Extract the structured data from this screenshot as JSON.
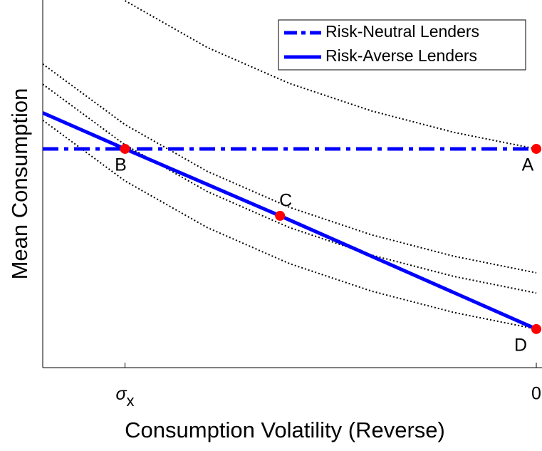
{
  "chart_data": {
    "type": "line",
    "xlabel": "Consumption Volatility (Reverse)",
    "ylabel": "Mean Consumption",
    "x_reversed": true,
    "xlim": [
      1.2,
      0
    ],
    "ylim": [
      0,
      10
    ],
    "xticks": [
      {
        "value": 1,
        "label": "σx"
      },
      0
    ],
    "legend": "upper right",
    "series": [
      {
        "name": "Risk-Neutral Lenders",
        "color": "#0000ff",
        "style": "dashdot",
        "x": [
          1.2,
          0
        ],
        "values": [
          5.95,
          5.95
        ]
      },
      {
        "name": "Risk-Averse Lenders",
        "color": "#0000ff",
        "style": "solid",
        "x": [
          1.2,
          1,
          0.623,
          0
        ],
        "values": [
          6.93,
          5.95,
          4.13,
          1.05
        ]
      }
    ],
    "curves": [
      {
        "color": "#000000",
        "style": "dotted",
        "x": [
          1,
          0.8,
          0.6,
          0.4,
          0.2,
          0
        ],
        "values": [
          9.98,
          8.71,
          7.73,
          6.98,
          6.4,
          5.95
        ]
      },
      {
        "color": "#000000",
        "style": "dotted",
        "x": [
          1.2,
          1,
          0.8,
          0.6,
          0.4,
          0.2,
          0
        ],
        "values": [
          8.26,
          6.61,
          5.34,
          4.36,
          3.61,
          3.03,
          2.58
        ]
      },
      {
        "color": "#000000",
        "style": "dotted",
        "x": [
          1.2,
          1,
          0.8,
          0.6,
          0.4,
          0.2,
          0
        ],
        "values": [
          7.71,
          6.06,
          4.79,
          3.81,
          3.06,
          2.48,
          2.03
        ]
      },
      {
        "color": "#000000",
        "style": "dotted",
        "x": [
          1.2,
          1,
          0.8,
          0.6,
          0.4,
          0.2,
          0
        ],
        "values": [
          6.73,
          5.08,
          3.81,
          2.83,
          2.08,
          1.5,
          1.05
        ]
      }
    ],
    "points": [
      {
        "label": "A",
        "x": 0,
        "y": 5.95,
        "color": "#ff0000"
      },
      {
        "label": "B",
        "x": 1,
        "y": 5.95,
        "color": "#ff0000"
      },
      {
        "label": "C",
        "x": 0.623,
        "y": 4.13,
        "color": "#ff0000"
      },
      {
        "label": "D",
        "x": 0,
        "y": 1.05,
        "color": "#ff0000"
      }
    ]
  }
}
